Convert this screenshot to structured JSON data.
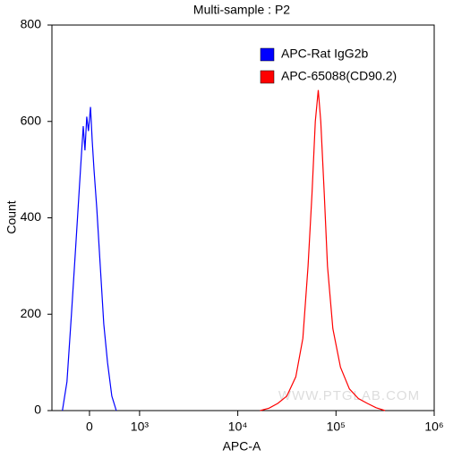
{
  "chart_data": {
    "type": "line",
    "title": "Multi-sample : P2",
    "x_label": "APC-A",
    "y_label": "Count",
    "x_scale": "biexponential",
    "xlim": [
      -750,
      1000000
    ],
    "ylim": [
      0,
      800
    ],
    "xticks": [
      0,
      {
        "value": 1000,
        "label": "10³"
      },
      {
        "value": 10000,
        "label": "10⁴"
      },
      {
        "value": 100000,
        "label": "10⁵"
      },
      {
        "value": 1000000,
        "label": "10⁶"
      }
    ],
    "yticks": [
      0,
      200,
      400,
      600,
      800
    ],
    "legend": "top-right",
    "watermark": "WWW.PTGLAB.COM",
    "series": [
      {
        "name": "APC-Rat IgG2b",
        "color": "#0000ff",
        "x": [
          -540,
          -450,
          -360,
          -270,
          -180,
          -125,
          -90,
          -55,
          -20,
          20,
          55,
          90,
          145,
          215,
          285,
          360,
          445,
          535
        ],
        "values": [
          0,
          60,
          200,
          350,
          500,
          590,
          540,
          610,
          580,
          630,
          560,
          500,
          420,
          300,
          180,
          100,
          30,
          0
        ]
      },
      {
        "name": "APC-65088(CD90.2)",
        "color": "#ff0000",
        "x": [
          16900,
          20800,
          25600,
          31600,
          39000,
          46000,
          52000,
          57000,
          61600,
          66000,
          70000,
          76000,
          82000,
          93000,
          111000,
          137000,
          169000,
          208000,
          256000,
          316000
        ],
        "values": [
          0,
          5,
          15,
          30,
          70,
          150,
          300,
          450,
          600,
          665,
          600,
          450,
          300,
          170,
          90,
          45,
          25,
          15,
          6,
          0
        ]
      }
    ]
  }
}
